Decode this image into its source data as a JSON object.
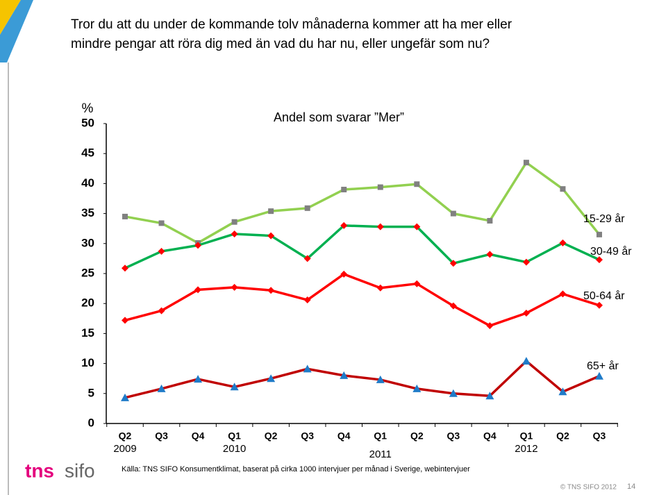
{
  "chart_data": {
    "type": "line",
    "title_lines": [
      "Tror du att du under de kommande tolv månaderna kommer att ha mer eller",
      "mindre pengar att röra dig med än vad du har nu, eller ungefär som nu?"
    ],
    "subtitle": "Andel som svarar ”Mer”",
    "y_axis_label": "%",
    "categories": [
      "Q2",
      "Q3",
      "Q4",
      "Q1",
      "Q2",
      "Q3",
      "Q4",
      "Q1",
      "Q2",
      "Q3",
      "Q4",
      "Q1",
      "Q2",
      "Q3"
    ],
    "year_labels": [
      "2009",
      null,
      null,
      "2010",
      null,
      null,
      null,
      "2011",
      null,
      null,
      null,
      "2012",
      null,
      null
    ],
    "ylim": [
      0,
      50
    ],
    "yticks": [
      0,
      5,
      10,
      15,
      20,
      25,
      30,
      35,
      40,
      45,
      50
    ],
    "series": [
      {
        "name": "15-29 år",
        "color": "#92d050",
        "marker": "square",
        "marker_color": "#808080",
        "values": [
          34.5,
          33.4,
          30.1,
          33.6,
          35.4,
          35.9,
          39.0,
          39.4,
          39.9,
          35.0,
          33.8,
          43.5,
          39.1,
          31.5
        ]
      },
      {
        "name": "30-49 år",
        "color": "#00b050",
        "marker": "diamond",
        "marker_color": "#ff0000",
        "values": [
          25.9,
          28.7,
          29.7,
          31.6,
          31.3,
          27.5,
          33.0,
          32.8,
          32.8,
          26.7,
          28.2,
          26.9,
          30.1,
          27.3
        ]
      },
      {
        "name": "50-64 år",
        "color": "#ff0000",
        "marker": "diamond",
        "marker_color": "#ff0000",
        "values": [
          17.2,
          18.8,
          22.3,
          22.7,
          22.2,
          20.6,
          24.9,
          22.6,
          23.3,
          19.6,
          16.3,
          18.4,
          21.6,
          19.7
        ]
      },
      {
        "name": "65+ år",
        "color": "#c00000",
        "marker": "triangle",
        "marker_color": "#1f7bc8",
        "values": [
          4.3,
          5.8,
          7.4,
          6.1,
          7.5,
          9.1,
          8.0,
          7.3,
          5.8,
          5.0,
          4.6,
          10.4,
          5.3,
          7.9
        ]
      }
    ]
  },
  "footer": {
    "source": "Källa: TNS SIFO Konsumentklimat, baserat på cirka 1000 intervjuer per månad i Sverige, webintervjuer",
    "copyright": "© TNS SIFO 2012",
    "page": "14",
    "logo_left": "tns",
    "logo_right": "sifo"
  }
}
